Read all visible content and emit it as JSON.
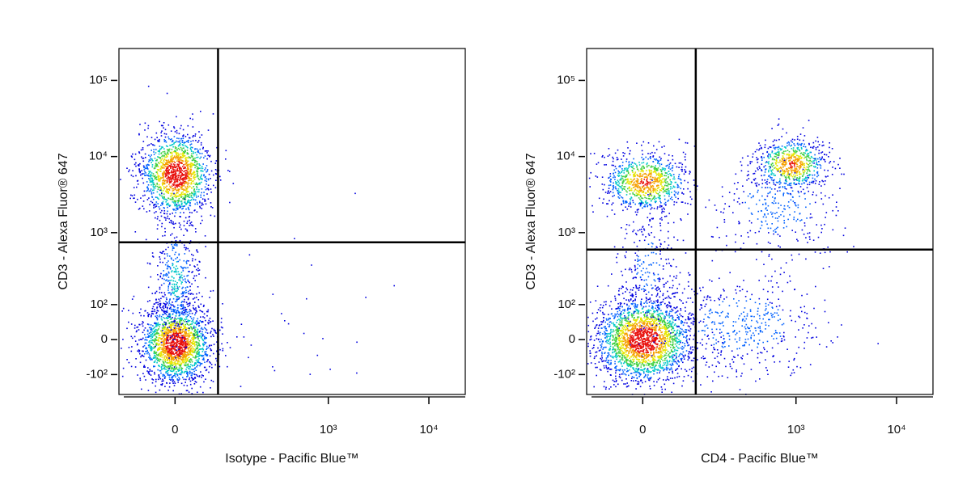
{
  "chart_data": [
    {
      "type": "scatter",
      "x_label": "Isotype - Pacific Blue™",
      "y_label": "CD3 - Alexa Fluor® 647",
      "xlim": [
        -100,
        23000
      ],
      "ylim": [
        -200,
        262144
      ],
      "xticks": [
        0,
        {
          "value": 1000,
          "label": "10³"
        },
        {
          "value": 10000,
          "label": "10⁴"
        }
      ],
      "yticks": [
        {
          "value": -100,
          "label": "-10²"
        },
        0,
        {
          "value": 100,
          "label": "10²"
        },
        {
          "value": 1000,
          "label": "10³"
        },
        {
          "value": 10000,
          "label": "10⁴"
        },
        {
          "value": 100000,
          "label": "10⁵"
        }
      ],
      "gate_x": 69,
      "gate_y": 747
    },
    {
      "type": "scatter",
      "x_label": "CD4 - Pacific Blue™",
      "y_label": "CD3 - Alexa Fluor® 647",
      "xlim": [
        -100,
        23000
      ],
      "ylim": [
        -200,
        262144
      ],
      "xticks": [
        0,
        {
          "value": 1000,
          "label": "10³"
        },
        {
          "value": 10000,
          "label": "10⁴"
        }
      ],
      "yticks": [
        {
          "value": -100,
          "label": "-10²"
        },
        0,
        {
          "value": 100,
          "label": "10²"
        },
        {
          "value": 1000,
          "label": "10³"
        },
        {
          "value": 10000,
          "label": "10⁴"
        },
        {
          "value": 100000,
          "label": "10⁵"
        }
      ],
      "gate_x": 92,
      "gate_y": 598
    }
  ]
}
